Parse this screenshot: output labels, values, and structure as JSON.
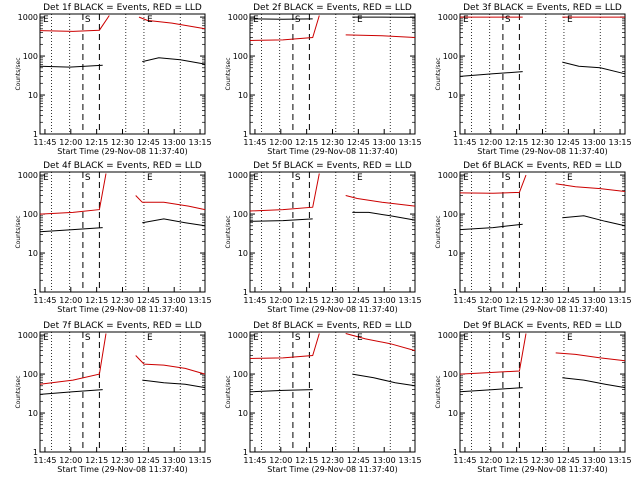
{
  "chart_data": [
    {
      "type": "line",
      "title": "Det 1f BLACK = Events, RED = LLD",
      "xlabel": "Start Time (29-Nov-08 11:37:40)",
      "ylabel": "Counts/sec",
      "x_ticks": [
        "11:45",
        "12:00",
        "12:15",
        "12:30",
        "12:45",
        "13:00",
        "13:15"
      ],
      "y_ticks": [
        "1",
        "10",
        "100",
        "1000"
      ],
      "yscale": "log",
      "ylim": [
        1,
        1200
      ],
      "markers": [
        {
          "label": "E",
          "pos": "left-top"
        },
        {
          "label": "S",
          "pos": "first-dashed"
        },
        {
          "label": "E",
          "pos": "right-dotted"
        }
      ],
      "series": [
        {
          "name": "BLACK = Events",
          "color": "#000000",
          "segments": [
            [
              [
                0,
                55
              ],
              [
                0.18,
                52
              ],
              [
                0.38,
                58
              ]
            ],
            [
              [
                0.62,
                72
              ],
              [
                0.72,
                90
              ],
              [
                0.85,
                80
              ],
              [
                1,
                62
              ]
            ]
          ]
        },
        {
          "name": "RED = LLD",
          "color": "#cc0000",
          "segments": [
            [
              [
                0,
                450
              ],
              [
                0.2,
                430
              ],
              [
                0.36,
                460
              ],
              [
                0.42,
                1100
              ]
            ],
            [
              [
                0.6,
                1000
              ],
              [
                0.65,
                820
              ],
              [
                0.8,
                700
              ],
              [
                1,
                500
              ]
            ]
          ]
        }
      ]
    },
    {
      "type": "line",
      "title": "Det 2f BLACK = Events, RED = LLD",
      "xlabel": "Start Time (29-Nov-08 11:37:40)",
      "ylabel": "Counts/sec",
      "x_ticks": [
        "11:45",
        "12:00",
        "12:15",
        "12:30",
        "12:45",
        "13:00",
        "13:15"
      ],
      "y_ticks": [
        "1",
        "10",
        "100",
        "1000"
      ],
      "yscale": "log",
      "ylim": [
        1,
        1200
      ],
      "markers": [
        {
          "label": "E",
          "pos": "left-top"
        },
        {
          "label": "S",
          "pos": "first-dashed"
        },
        {
          "label": "E",
          "pos": "right-dotted"
        }
      ],
      "series": [
        {
          "name": "BLACK = Events",
          "color": "#000000",
          "segments": [
            [
              [
                0,
                900
              ],
              [
                0.2,
                880
              ],
              [
                0.38,
                900
              ]
            ],
            [
              [
                0.62,
                1000
              ],
              [
                0.8,
                1000
              ],
              [
                1,
                980
              ]
            ]
          ]
        },
        {
          "name": "RED = LLD",
          "color": "#cc0000",
          "segments": [
            [
              [
                0,
                250
              ],
              [
                0.2,
                260
              ],
              [
                0.38,
                300
              ],
              [
                0.42,
                1100
              ]
            ],
            [
              [
                0.58,
                350
              ],
              [
                0.8,
                330
              ],
              [
                1,
                300
              ]
            ]
          ]
        }
      ]
    },
    {
      "type": "line",
      "title": "Det 3f BLACK = Events, RED = LLD",
      "xlabel": "Start Time (29-Nov-08 11:37:40)",
      "ylabel": "Counts/sec",
      "x_ticks": [
        "11:45",
        "12:00",
        "12:15",
        "12:30",
        "12:45",
        "13:00",
        "13:15"
      ],
      "y_ticks": [
        "1",
        "10",
        "100",
        "1000"
      ],
      "yscale": "log",
      "ylim": [
        1,
        1200
      ],
      "markers": [
        {
          "label": "E",
          "pos": "left-top"
        },
        {
          "label": "S",
          "pos": "first-dashed"
        },
        {
          "label": "E",
          "pos": "right-dotted"
        }
      ],
      "series": [
        {
          "name": "BLACK = Events",
          "color": "#000000",
          "segments": [
            [
              [
                0,
                30
              ],
              [
                0.2,
                35
              ],
              [
                0.38,
                40
              ]
            ],
            [
              [
                0.62,
                70
              ],
              [
                0.72,
                55
              ],
              [
                0.85,
                50
              ],
              [
                1,
                35
              ]
            ]
          ]
        },
        {
          "name": "RED = LLD",
          "color": "#cc0000",
          "segments": [
            [
              [
                0,
                1000
              ],
              [
                0.38,
                1000
              ]
            ],
            [
              [
                0.62,
                1000
              ],
              [
                1,
                1000
              ]
            ]
          ]
        }
      ]
    },
    {
      "type": "line",
      "title": "Det 4f BLACK = Events, RED = LLD",
      "xlabel": "Start Time (29-Nov-08 11:37:40)",
      "ylabel": "Counts/sec",
      "x_ticks": [
        "11:45",
        "12:00",
        "12:15",
        "12:30",
        "12:45",
        "13:00",
        "13:15"
      ],
      "y_ticks": [
        "1",
        "10",
        "100",
        "1000"
      ],
      "yscale": "log",
      "ylim": [
        1,
        1200
      ],
      "markers": [
        {
          "label": "E",
          "pos": "left-top"
        },
        {
          "label": "S",
          "pos": "first-dashed"
        },
        {
          "label": "E",
          "pos": "right-dotted"
        }
      ],
      "series": [
        {
          "name": "BLACK = Events",
          "color": "#000000",
          "segments": [
            [
              [
                0,
                35
              ],
              [
                0.2,
                40
              ],
              [
                0.38,
                45
              ]
            ],
            [
              [
                0.62,
                60
              ],
              [
                0.75,
                75
              ],
              [
                0.88,
                60
              ],
              [
                1,
                50
              ]
            ]
          ]
        },
        {
          "name": "RED = LLD",
          "color": "#cc0000",
          "segments": [
            [
              [
                0,
                100
              ],
              [
                0.2,
                110
              ],
              [
                0.36,
                130
              ],
              [
                0.4,
                1100
              ]
            ],
            [
              [
                0.58,
                300
              ],
              [
                0.62,
                200
              ],
              [
                0.75,
                200
              ],
              [
                0.9,
                160
              ],
              [
                1,
                130
              ]
            ]
          ]
        }
      ]
    },
    {
      "type": "line",
      "title": "Det 5f BLACK = Events, RED = LLD",
      "xlabel": "Start Time (29-Nov-08 11:37:40)",
      "ylabel": "Counts/sec",
      "x_ticks": [
        "11:45",
        "12:00",
        "12:15",
        "12:30",
        "12:45",
        "13:00",
        "13:15"
      ],
      "y_ticks": [
        "1",
        "10",
        "100",
        "1000"
      ],
      "yscale": "log",
      "ylim": [
        1,
        1200
      ],
      "markers": [
        {
          "label": "E",
          "pos": "left-top"
        },
        {
          "label": "S",
          "pos": "first-dashed"
        },
        {
          "label": "E",
          "pos": "right-dotted"
        }
      ],
      "series": [
        {
          "name": "BLACK = Events",
          "color": "#000000",
          "segments": [
            [
              [
                0,
                65
              ],
              [
                0.2,
                68
              ],
              [
                0.38,
                75
              ]
            ],
            [
              [
                0.62,
                110
              ],
              [
                0.72,
                110
              ],
              [
                0.85,
                90
              ],
              [
                1,
                70
              ]
            ]
          ]
        },
        {
          "name": "RED = LLD",
          "color": "#cc0000",
          "segments": [
            [
              [
                0,
                120
              ],
              [
                0.2,
                130
              ],
              [
                0.38,
                150
              ],
              [
                0.42,
                1100
              ]
            ],
            [
              [
                0.58,
                300
              ],
              [
                0.65,
                250
              ],
              [
                0.8,
                200
              ],
              [
                1,
                160
              ]
            ]
          ]
        }
      ]
    },
    {
      "type": "line",
      "title": "Det 6f BLACK = Events, RED = LLD",
      "xlabel": "Start Time (29-Nov-08 11:37:40)",
      "ylabel": "Counts/sec",
      "x_ticks": [
        "11:45",
        "12:00",
        "12:15",
        "12:30",
        "12:45",
        "13:00",
        "13:15"
      ],
      "y_ticks": [
        "1",
        "10",
        "100",
        "1000"
      ],
      "yscale": "log",
      "ylim": [
        1,
        1200
      ],
      "markers": [
        {
          "label": "E",
          "pos": "left-top"
        },
        {
          "label": "S",
          "pos": "first-dashed"
        },
        {
          "label": "E",
          "pos": "right-dotted"
        }
      ],
      "series": [
        {
          "name": "BLACK = Events",
          "color": "#000000",
          "segments": [
            [
              [
                0,
                40
              ],
              [
                0.2,
                45
              ],
              [
                0.38,
                55
              ]
            ],
            [
              [
                0.62,
                80
              ],
              [
                0.75,
                90
              ],
              [
                0.88,
                65
              ],
              [
                1,
                50
              ]
            ]
          ]
        },
        {
          "name": "RED = LLD",
          "color": "#cc0000",
          "segments": [
            [
              [
                0,
                350
              ],
              [
                0.2,
                340
              ],
              [
                0.36,
                360
              ],
              [
                0.4,
                1000
              ]
            ],
            [
              [
                0.58,
                600
              ],
              [
                0.7,
                500
              ],
              [
                0.85,
                450
              ],
              [
                1,
                380
              ]
            ]
          ]
        }
      ]
    },
    {
      "type": "line",
      "title": "Det 7f BLACK = Events, RED = LLD",
      "xlabel": "Start Time (29-Nov-08 11:37:40)",
      "ylabel": "Counts/sec",
      "x_ticks": [
        "11:45",
        "12:00",
        "12:15",
        "12:30",
        "12:45",
        "13:00",
        "13:15"
      ],
      "y_ticks": [
        "1",
        "10",
        "100",
        "1000"
      ],
      "yscale": "log",
      "ylim": [
        1,
        1200
      ],
      "markers": [
        {
          "label": "E",
          "pos": "left-top"
        },
        {
          "label": "S",
          "pos": "first-dashed"
        },
        {
          "label": "E",
          "pos": "right-dotted"
        }
      ],
      "series": [
        {
          "name": "BLACK = Events",
          "color": "#000000",
          "segments": [
            [
              [
                0,
                30
              ],
              [
                0.2,
                35
              ],
              [
                0.38,
                40
              ]
            ],
            [
              [
                0.62,
                70
              ],
              [
                0.75,
                60
              ],
              [
                0.88,
                55
              ],
              [
                1,
                45
              ]
            ]
          ]
        },
        {
          "name": "RED = LLD",
          "color": "#cc0000",
          "segments": [
            [
              [
                0,
                55
              ],
              [
                0.2,
                70
              ],
              [
                0.36,
                100
              ],
              [
                0.4,
                1100
              ]
            ],
            [
              [
                0.58,
                300
              ],
              [
                0.63,
                180
              ],
              [
                0.75,
                170
              ],
              [
                0.88,
                140
              ],
              [
                1,
                100
              ]
            ]
          ]
        }
      ]
    },
    {
      "type": "line",
      "title": "Det 8f BLACK = Events, RED = LLD",
      "xlabel": "Start Time (29-Nov-08 11:37:40)",
      "ylabel": "Counts/sec",
      "x_ticks": [
        "11:45",
        "12:00",
        "12:15",
        "12:30",
        "12:45",
        "13:00",
        "13:15"
      ],
      "y_ticks": [
        "1",
        "10",
        "100",
        "1000"
      ],
      "yscale": "log",
      "ylim": [
        1,
        1200
      ],
      "markers": [
        {
          "label": "E",
          "pos": "left-top"
        },
        {
          "label": "S",
          "pos": "first-dashed"
        },
        {
          "label": "E",
          "pos": "right-dotted"
        }
      ],
      "series": [
        {
          "name": "BLACK = Events",
          "color": "#000000",
          "segments": [
            [
              [
                0,
                35
              ],
              [
                0.2,
                38
              ],
              [
                0.38,
                40
              ]
            ],
            [
              [
                0.62,
                100
              ],
              [
                0.75,
                80
              ],
              [
                0.88,
                60
              ],
              [
                1,
                50
              ]
            ]
          ]
        },
        {
          "name": "RED = LLD",
          "color": "#cc0000",
          "segments": [
            [
              [
                0,
                250
              ],
              [
                0.2,
                260
              ],
              [
                0.38,
                300
              ],
              [
                0.42,
                1100
              ]
            ],
            [
              [
                0.58,
                1100
              ],
              [
                0.7,
                800
              ],
              [
                0.85,
                600
              ],
              [
                1,
                400
              ]
            ]
          ]
        }
      ]
    },
    {
      "type": "line",
      "title": "Det 9f BLACK = Events, RED = LLD",
      "xlabel": "Start Time (29-Nov-08 11:37:40)",
      "ylabel": "Counts/sec",
      "x_ticks": [
        "11:45",
        "12:00",
        "12:15",
        "12:30",
        "12:45",
        "13:00",
        "13:15"
      ],
      "y_ticks": [
        "1",
        "10",
        "100",
        "1000"
      ],
      "yscale": "log",
      "ylim": [
        1,
        1200
      ],
      "markers": [
        {
          "label": "E",
          "pos": "left-top"
        },
        {
          "label": "S",
          "pos": "first-dashed"
        },
        {
          "label": "E",
          "pos": "right-dotted"
        }
      ],
      "series": [
        {
          "name": "BLACK = Events",
          "color": "#000000",
          "segments": [
            [
              [
                0,
                35
              ],
              [
                0.2,
                40
              ],
              [
                0.38,
                45
              ]
            ],
            [
              [
                0.62,
                80
              ],
              [
                0.75,
                70
              ],
              [
                0.88,
                55
              ],
              [
                1,
                45
              ]
            ]
          ]
        },
        {
          "name": "RED = LLD",
          "color": "#cc0000",
          "segments": [
            [
              [
                0,
                100
              ],
              [
                0.2,
                110
              ],
              [
                0.36,
                120
              ],
              [
                0.4,
                1100
              ]
            ],
            [
              [
                0.58,
                350
              ],
              [
                0.7,
                320
              ],
              [
                0.85,
                260
              ],
              [
                1,
                220
              ]
            ]
          ]
        }
      ]
    }
  ]
}
